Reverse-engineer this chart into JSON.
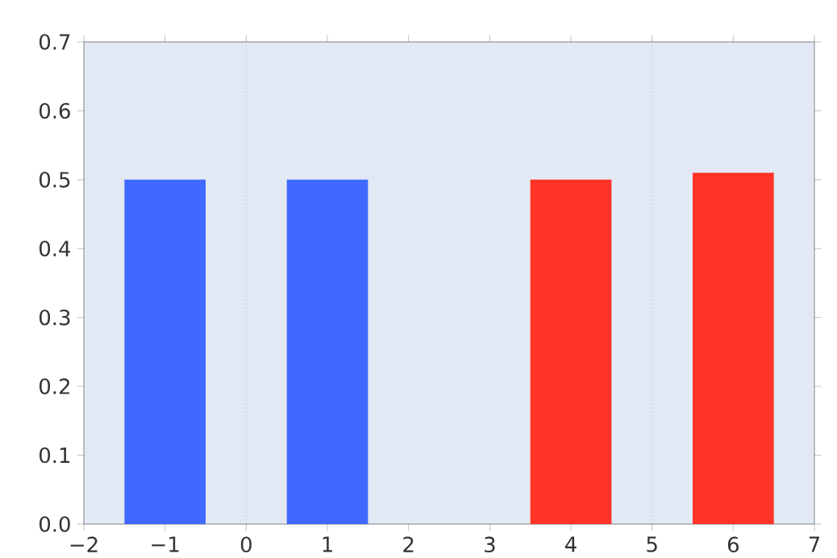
{
  "chart_data": {
    "type": "bar",
    "series": [
      {
        "color": "#4169ff",
        "x": [
          -1,
          1
        ],
        "values": [
          0.5,
          0.5
        ]
      },
      {
        "color": "#ff3328",
        "x": [
          4,
          6
        ],
        "values": [
          0.5,
          0.51
        ]
      }
    ],
    "xlim": [
      -2,
      7
    ],
    "xticks": [
      {
        "value": -2,
        "label": "−2"
      },
      {
        "value": -1,
        "label": "−1"
      },
      0,
      1,
      2,
      3,
      4,
      5,
      6,
      7
    ],
    "ylim": [
      0,
      0.7
    ],
    "yticks": [
      {
        "value": 0,
        "label": "0.0"
      },
      0.1,
      0.2,
      0.3,
      0.4,
      0.5,
      0.6,
      0.7
    ],
    "ref_lines": [
      {
        "axis": "x",
        "value": 0,
        "color": "#999999",
        "line_style": "dotted"
      },
      {
        "axis": "x",
        "value": 5,
        "color": "#999999",
        "line_style": "dotted"
      }
    ]
  }
}
